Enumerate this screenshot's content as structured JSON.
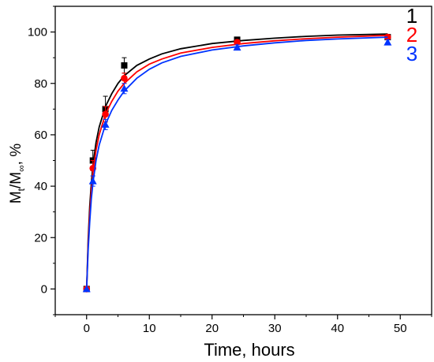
{
  "chart_data": {
    "type": "scatter",
    "title": "",
    "xlabel": "Time, hours",
    "ylabel": {
      "main": "M",
      "sub1": "t",
      "mid": "/M",
      "sub2": "∞",
      "suffix": ", %"
    },
    "xlim": [
      -5,
      55
    ],
    "ylim": [
      -10,
      110
    ],
    "xticks": [
      0,
      10,
      20,
      30,
      40,
      50
    ],
    "yticks": [
      0,
      20,
      40,
      60,
      80,
      100
    ],
    "grid": false,
    "legend_placement": "top-right",
    "series": [
      {
        "name": "1",
        "color": "#000000",
        "marker": "square",
        "points": [
          {
            "x": 0,
            "y": 0,
            "err": 0
          },
          {
            "x": 1,
            "y": 50,
            "err": 4
          },
          {
            "x": 3,
            "y": 70,
            "err": 5
          },
          {
            "x": 6,
            "y": 87,
            "err": 3
          },
          {
            "x": 24,
            "y": 97,
            "err": 1
          },
          {
            "x": 48,
            "y": 98,
            "err": 1
          }
        ],
        "fit": [
          [
            0,
            0
          ],
          [
            0.25,
            19
          ],
          [
            0.5,
            32
          ],
          [
            0.75,
            41
          ],
          [
            1,
            48
          ],
          [
            1.5,
            57
          ],
          [
            2,
            63
          ],
          [
            3,
            71
          ],
          [
            4,
            76
          ],
          [
            5,
            80
          ],
          [
            6,
            83
          ],
          [
            8,
            87
          ],
          [
            10,
            89.5
          ],
          [
            12,
            91.5
          ],
          [
            15,
            93.5
          ],
          [
            20,
            95.5
          ],
          [
            25,
            96.7
          ],
          [
            30,
            97.6
          ],
          [
            35,
            98.3
          ],
          [
            40,
            98.8
          ],
          [
            48,
            99.2
          ]
        ]
      },
      {
        "name": "2",
        "color": "#ff0000",
        "marker": "circle",
        "points": [
          {
            "x": 0,
            "y": 0,
            "err": 0
          },
          {
            "x": 1,
            "y": 47,
            "err": 3
          },
          {
            "x": 3,
            "y": 68,
            "err": 3
          },
          {
            "x": 6,
            "y": 82,
            "err": 2
          },
          {
            "x": 24,
            "y": 96,
            "err": 1
          },
          {
            "x": 48,
            "y": 98,
            "err": 1
          }
        ],
        "fit": [
          [
            0,
            0
          ],
          [
            0.25,
            17
          ],
          [
            0.5,
            29
          ],
          [
            0.75,
            38
          ],
          [
            1,
            45
          ],
          [
            1.5,
            54
          ],
          [
            2,
            60
          ],
          [
            3,
            68
          ],
          [
            4,
            73
          ],
          [
            5,
            77
          ],
          [
            6,
            80
          ],
          [
            8,
            84.5
          ],
          [
            10,
            87.5
          ],
          [
            12,
            89.5
          ],
          [
            15,
            91.8
          ],
          [
            20,
            94
          ],
          [
            25,
            95.5
          ],
          [
            30,
            96.6
          ],
          [
            35,
            97.4
          ],
          [
            40,
            98
          ],
          [
            48,
            98.7
          ]
        ]
      },
      {
        "name": "3",
        "color": "#0033ff",
        "marker": "triangle",
        "points": [
          {
            "x": 0,
            "y": 0,
            "err": 0
          },
          {
            "x": 1,
            "y": 42,
            "err": 2
          },
          {
            "x": 3,
            "y": 64,
            "err": 2
          },
          {
            "x": 6,
            "y": 78,
            "err": 2
          },
          {
            "x": 24,
            "y": 94,
            "err": 1
          },
          {
            "x": 48,
            "y": 96,
            "err": 1
          }
        ],
        "fit": [
          [
            0,
            0
          ],
          [
            0.25,
            15
          ],
          [
            0.5,
            26
          ],
          [
            0.75,
            35
          ],
          [
            1,
            41
          ],
          [
            1.5,
            50
          ],
          [
            2,
            56
          ],
          [
            3,
            64
          ],
          [
            4,
            69.5
          ],
          [
            5,
            73.5
          ],
          [
            6,
            77
          ],
          [
            8,
            82
          ],
          [
            10,
            85.5
          ],
          [
            12,
            88
          ],
          [
            15,
            90.5
          ],
          [
            20,
            93
          ],
          [
            25,
            94.6
          ],
          [
            30,
            95.8
          ],
          [
            35,
            96.7
          ],
          [
            40,
            97.3
          ],
          [
            48,
            98
          ]
        ]
      }
    ]
  }
}
